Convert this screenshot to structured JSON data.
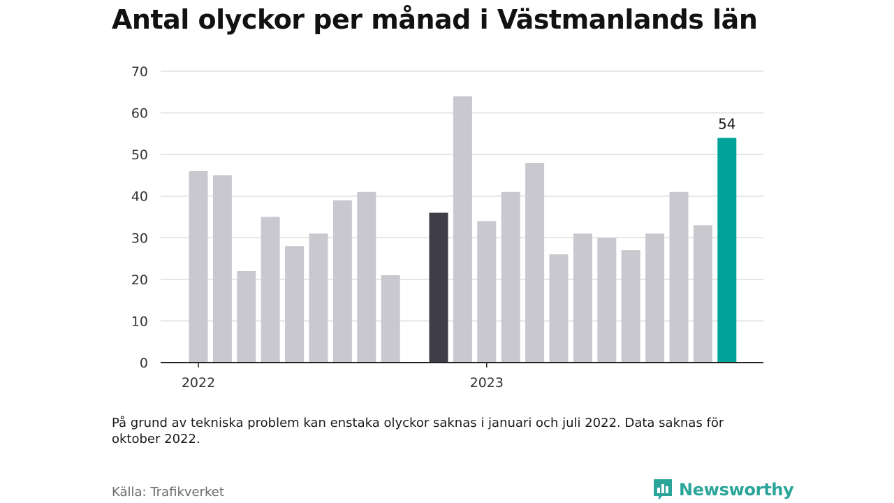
{
  "title": "Antal olyckor per månad i Västmanlands län",
  "note": "På grund av tekniska problem kan enstaka olyckor saknas i januari och juli 2022. Data saknas för oktober 2022.",
  "source": "Källa: Trafikverket",
  "brand": "Newsworthy",
  "colors": {
    "bar_default": "#c9c8cf",
    "bar_dark": "#3f3d47",
    "bar_highlight": "#00a398",
    "grid": "#dddddd",
    "axis": "#222222",
    "brand": "#2ba59a"
  },
  "chart_data": {
    "type": "bar",
    "x": [
      "2022-01",
      "2022-02",
      "2022-03",
      "2022-04",
      "2022-05",
      "2022-06",
      "2022-07",
      "2022-08",
      "2022-09",
      "2022-10",
      "2022-11",
      "2022-12",
      "2023-01",
      "2023-02",
      "2023-03",
      "2023-04",
      "2023-05",
      "2023-06",
      "2023-07",
      "2023-08",
      "2023-09",
      "2023-10",
      "2023-11",
      "2023-12"
    ],
    "values": [
      46,
      45,
      22,
      35,
      28,
      31,
      39,
      41,
      21,
      null,
      36,
      64,
      34,
      41,
      48,
      26,
      31,
      30,
      27,
      31,
      41,
      33,
      54,
      null
    ],
    "bar_colors": [
      "default",
      "default",
      "default",
      "default",
      "default",
      "default",
      "default",
      "default",
      "default",
      "default",
      "dark",
      "default",
      "default",
      "default",
      "default",
      "default",
      "default",
      "default",
      "default",
      "default",
      "default",
      "default",
      "highlight",
      "default"
    ],
    "value_labels": [
      null,
      null,
      null,
      null,
      null,
      null,
      null,
      null,
      null,
      null,
      null,
      null,
      null,
      null,
      null,
      null,
      null,
      null,
      null,
      null,
      null,
      null,
      "54",
      null
    ],
    "x_ticks": [
      {
        "index": 0,
        "label": "2022"
      },
      {
        "index": 12,
        "label": "2023"
      }
    ],
    "y_ticks": [
      0,
      10,
      20,
      30,
      40,
      50,
      60,
      70
    ],
    "ylim": [
      0,
      70
    ],
    "grid": true,
    "title": "Antal olyckor per månad i Västmanlands län",
    "xlabel": "",
    "ylabel": ""
  }
}
